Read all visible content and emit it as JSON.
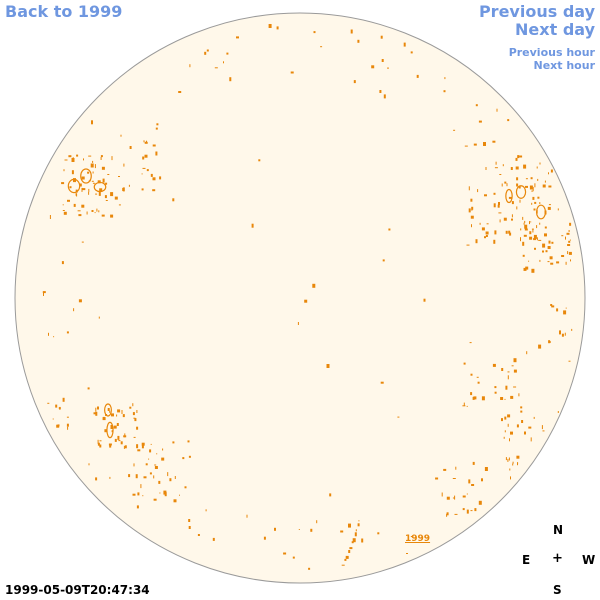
{
  "nav": {
    "back_label": "Back to 1999",
    "prev_day_label": "Previous day",
    "next_day_label": "Next day",
    "prev_hour_label": "Previous hour",
    "next_hour_label": "Next hour"
  },
  "compass": {
    "north": "N",
    "east": "E",
    "center": "+",
    "west": "W",
    "south": "S"
  },
  "timestamp": "1999-05-09T20:47:34",
  "year_label": "1999",
  "colors": {
    "link": "#6f97e0",
    "disk_fill": "#fff8ea",
    "disk_outline": "#9a9a9a",
    "contour": "#e8870a",
    "text": "#000000"
  }
}
